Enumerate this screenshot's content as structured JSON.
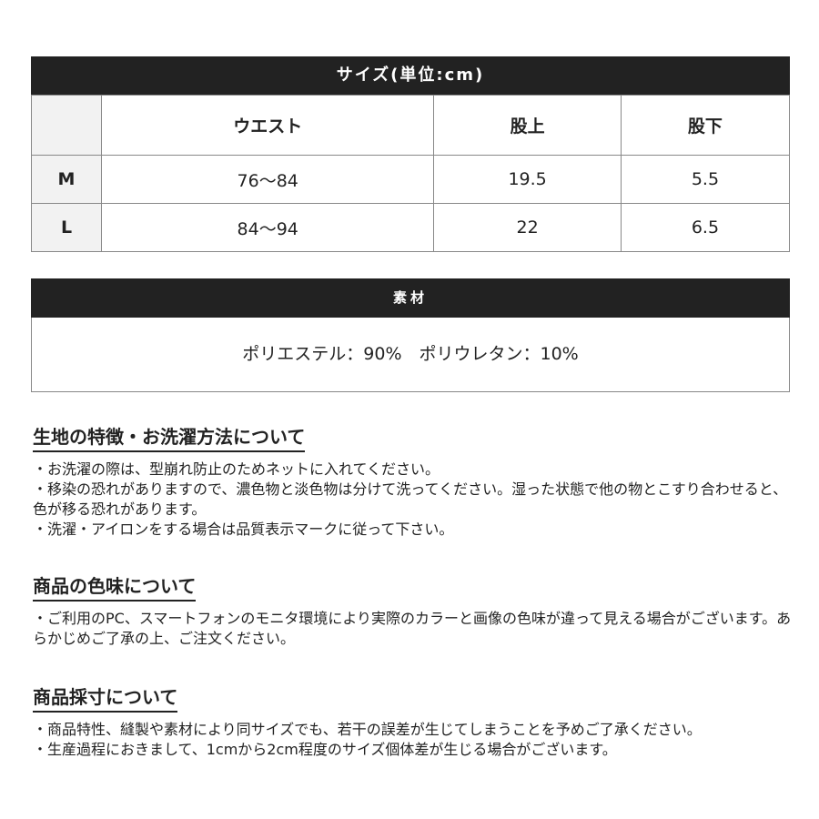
{
  "size_table": {
    "title": "サイズ(単位:cm)",
    "headers": [
      "",
      "ウエスト",
      "股上",
      "股下"
    ],
    "rows": [
      [
        "M",
        "76～84",
        "19.5",
        "5.5"
      ],
      [
        "L",
        "84～94",
        "22",
        "6.5"
      ]
    ]
  },
  "material": {
    "title": "素材",
    "text": "ポリエステル：90%　ポリウレタン：10%"
  },
  "sections": [
    {
      "title": "生地の特徴・お洗濯方法について",
      "lines": [
        "・お洗濯の際は、型崩れ防止のためネットに入れてください。",
        "・移染の恐れがありますので、濃色物と淡色物は分けて洗ってください。湿った状態で他の物とこすり合わせると、色が移る恐れがあります。",
        "・洗濯・アイロンをする場合は品質表示マークに従って下さい。"
      ]
    },
    {
      "title": "商品の色味について",
      "lines": [
        "・ご利用のPC、スマートフォンのモニタ環境により実際のカラーと画像の色味が違って見える場合がございます。あらかじめご了承の上、ご注文ください。"
      ]
    },
    {
      "title": "商品採寸について",
      "lines": [
        "・商品特性、縫製や素材により同サイズでも、若干の誤差が生じてしまうことを予めご了承ください。",
        "・生産過程におきまして、1cmから2cm程度のサイズ個体差が生じる場合がございます。"
      ]
    }
  ]
}
